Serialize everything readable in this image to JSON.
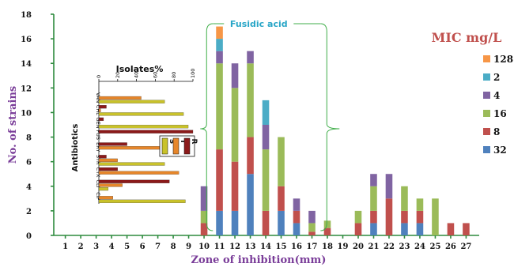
{
  "chart_data": [
    {
      "type": "bar",
      "stacked": true,
      "title": "",
      "xlabel": "Zone of inhibition(mm)",
      "ylabel": "No. of strains",
      "ylim": [
        0,
        18
      ],
      "yticks": [
        "0",
        "2",
        "4",
        "6",
        "8",
        "10",
        "12",
        "14",
        "16",
        "18"
      ],
      "categories": [
        "1",
        "2",
        "3",
        "4",
        "5",
        "6",
        "7",
        "8",
        "9",
        "10",
        "11",
        "12",
        "13",
        "14",
        "15",
        "16",
        "17",
        "18",
        "19",
        "20",
        "21",
        "22",
        "23",
        "24",
        "25",
        "26",
        "27"
      ],
      "legend_title": "MIC mg/L",
      "legend_position": "right",
      "series": [
        {
          "name": "32",
          "color": "#4f81bd",
          "values": [
            0,
            0,
            0,
            0,
            0,
            0,
            0,
            0,
            0,
            0,
            2,
            2,
            5,
            0,
            2,
            1,
            0,
            0,
            0,
            0,
            1,
            0,
            1,
            1,
            0,
            0,
            0
          ]
        },
        {
          "name": "8",
          "color": "#c0504d",
          "values": [
            0,
            0,
            0,
            0,
            0,
            0,
            0,
            0,
            0,
            1,
            5,
            4,
            3,
            2,
            2,
            1,
            0.3,
            0.6,
            0,
            1,
            1,
            3,
            1,
            1,
            0,
            1,
            1
          ]
        },
        {
          "name": "16",
          "color": "#9bbb59",
          "values": [
            0,
            0,
            0,
            0,
            0,
            0,
            0,
            0,
            0,
            1,
            7,
            6,
            6,
            5,
            4,
            0,
            0.7,
            0.6,
            0,
            1,
            2,
            0,
            2,
            1,
            3,
            0,
            0
          ]
        },
        {
          "name": "4",
          "color": "#8064a2",
          "values": [
            0,
            0,
            0,
            0,
            0,
            0,
            0,
            0,
            0,
            2,
            1,
            2,
            1,
            2,
            0,
            1,
            1,
            0,
            0,
            0,
            1,
            2,
            0,
            0,
            0,
            0,
            0
          ]
        },
        {
          "name": "2",
          "color": "#4bacc6",
          "values": [
            0,
            0,
            0,
            0,
            0,
            0,
            0,
            0,
            0,
            0,
            1,
            0,
            0,
            2,
            0,
            0,
            0,
            0,
            0,
            0,
            0,
            0,
            0,
            0,
            0,
            0,
            0
          ]
        },
        {
          "name": "128",
          "color": "#f79646",
          "values": [
            0,
            0,
            0,
            0,
            0,
            0,
            0,
            0,
            0,
            0,
            1,
            0,
            0,
            0,
            0,
            0,
            0,
            0,
            0,
            0,
            0,
            0,
            0,
            0,
            0,
            0,
            0
          ]
        }
      ],
      "annotation": "Fusidic acid",
      "annotation_span": [
        "11",
        "16"
      ]
    },
    {
      "type": "bar",
      "orientation": "horizontal",
      "title": "Isolates%",
      "ylabel": "Antibiotics",
      "xlim": [
        0,
        100
      ],
      "xticks": [
        "0",
        "20",
        "40",
        "60",
        "80",
        "100"
      ],
      "categories": [
        "VAN",
        "CHL",
        "GEN",
        "FUS",
        "ERY",
        "STR",
        "CTX",
        "CLI",
        "CIP"
      ],
      "series": [
        {
          "name": "R",
          "color": "#8b1a1a",
          "values": [
            0,
            8,
            5,
            100,
            30,
            8,
            20,
            75,
            0
          ]
        },
        {
          "name": "I",
          "color": "#e6862a",
          "values": [
            45,
            2,
            0,
            0,
            70,
            20,
            85,
            25,
            15
          ]
        },
        {
          "name": "S",
          "color": "#c9c22a",
          "values": [
            70,
            90,
            95,
            0,
            0,
            70,
            0,
            10,
            92
          ]
        }
      ],
      "legend": [
        "S",
        "I",
        "R"
      ]
    }
  ]
}
